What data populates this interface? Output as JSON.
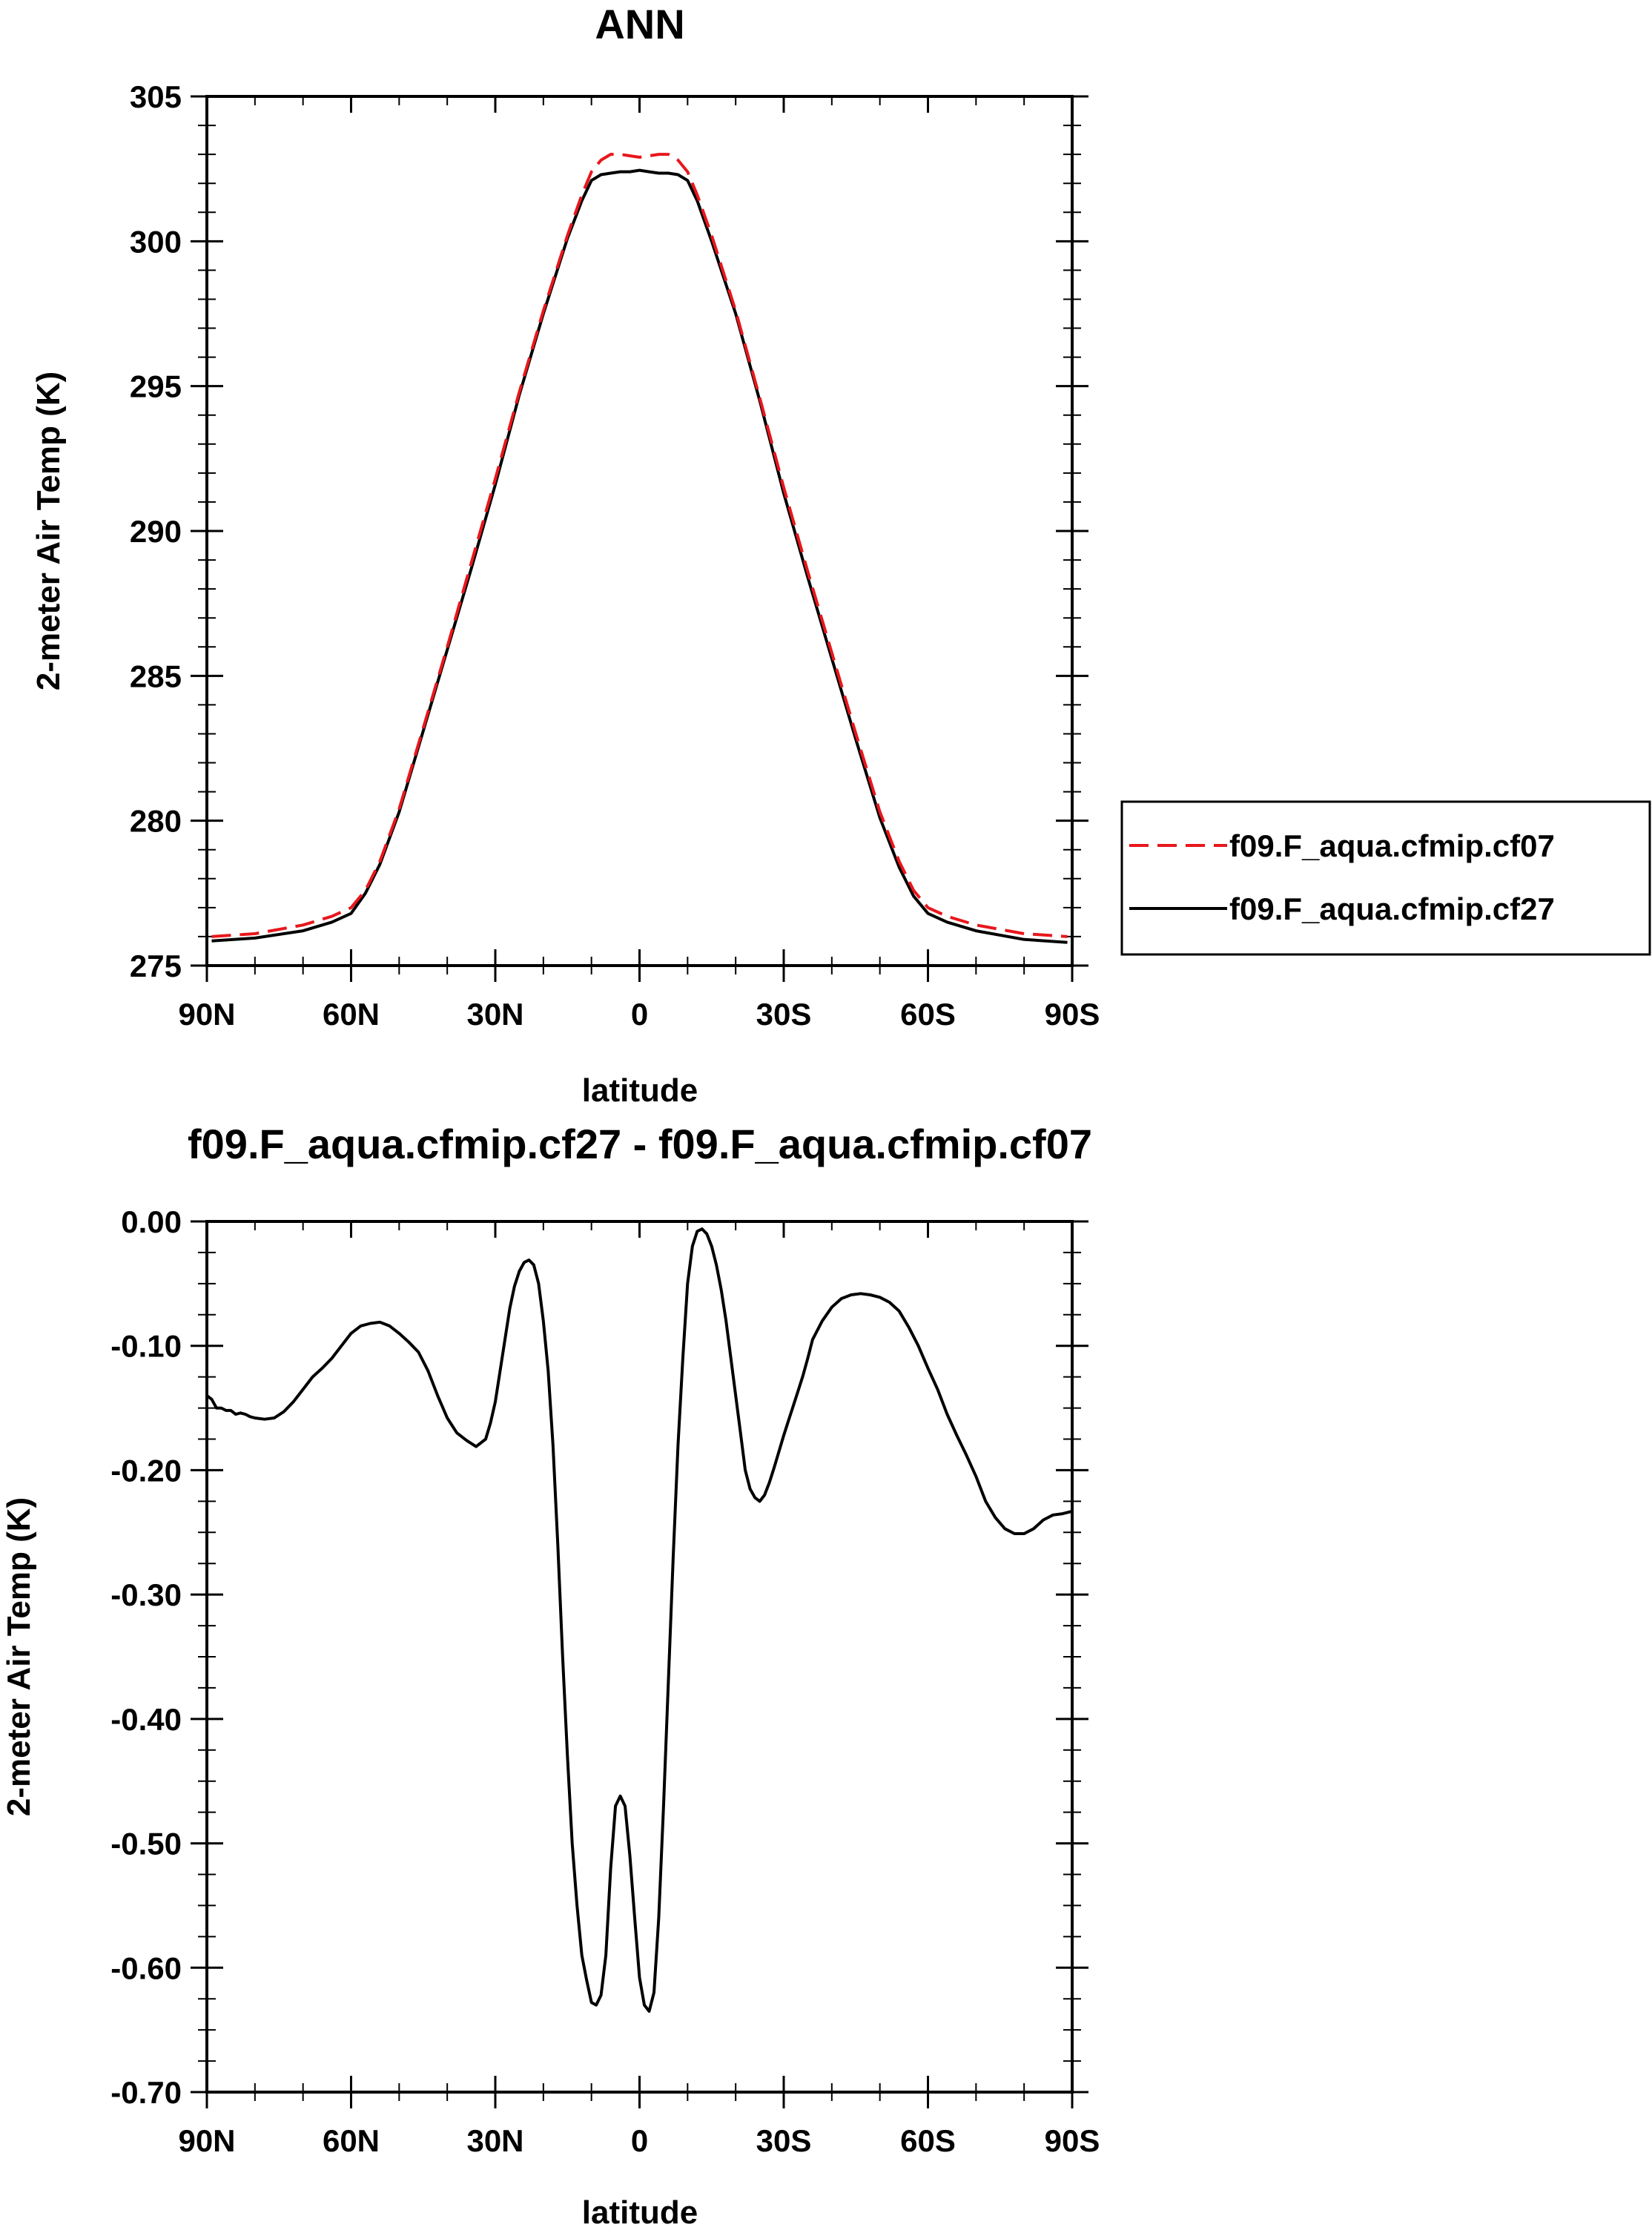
{
  "chart_data": [
    {
      "type": "line",
      "title": "ANN",
      "xlabel": "latitude",
      "ylabel": "2-meter Air Temp (K)",
      "xlim": [
        -90,
        90
      ],
      "ylim": [
        275,
        305
      ],
      "x_ticks": [
        {
          "value": -90,
          "label": "90N"
        },
        {
          "value": -60,
          "label": "60N"
        },
        {
          "value": -30,
          "label": "30N"
        },
        {
          "value": 0,
          "label": "0"
        },
        {
          "value": 30,
          "label": "30S"
        },
        {
          "value": 60,
          "label": "60S"
        },
        {
          "value": 90,
          "label": "90S"
        }
      ],
      "y_ticks": [
        {
          "value": 275,
          "label": "275"
        },
        {
          "value": 280,
          "label": "280"
        },
        {
          "value": 285,
          "label": "285"
        },
        {
          "value": 290,
          "label": "290"
        },
        {
          "value": 295,
          "label": "295"
        },
        {
          "value": 300,
          "label": "300"
        },
        {
          "value": 305,
          "label": "305"
        }
      ],
      "legend": {
        "position": "right"
      },
      "series": [
        {
          "name": "f09.F_aqua.cfmip.cf07",
          "color": "#e8171c",
          "dash": "dashed",
          "x": [
            -89,
            -80,
            -70,
            -64,
            -60,
            -57,
            -54,
            -50,
            -45,
            -40,
            -35,
            -30,
            -25,
            -20,
            -15,
            -12,
            -10,
            -8,
            -6,
            -4,
            -2,
            0,
            2,
            4,
            6,
            8,
            10,
            12,
            15,
            20,
            25,
            30,
            35,
            40,
            45,
            50,
            54,
            57,
            60,
            64,
            70,
            80,
            89
          ],
          "values": [
            276.0,
            276.1,
            276.4,
            276.7,
            277.0,
            277.6,
            278.6,
            280.4,
            283.2,
            286.0,
            288.9,
            291.8,
            294.8,
            297.6,
            300.2,
            301.6,
            302.4,
            302.8,
            303.0,
            303.0,
            302.95,
            302.9,
            302.95,
            303.0,
            303.0,
            302.8,
            302.4,
            301.6,
            300.2,
            297.6,
            294.6,
            291.5,
            288.6,
            285.8,
            283.0,
            280.3,
            278.6,
            277.6,
            277.0,
            276.7,
            276.4,
            276.1,
            276.0
          ]
        },
        {
          "name": "f09.F_aqua.cfmip.cf27",
          "color": "#000000",
          "dash": "solid",
          "x": [
            -89,
            -80,
            -70,
            -64,
            -60,
            -57,
            -54,
            -50,
            -45,
            -40,
            -35,
            -30,
            -25,
            -20,
            -15,
            -12,
            -10,
            -8,
            -6,
            -4,
            -2,
            0,
            2,
            4,
            6,
            8,
            10,
            12,
            15,
            20,
            25,
            30,
            35,
            40,
            45,
            50,
            54,
            57,
            60,
            64,
            70,
            80,
            89
          ],
          "values": [
            275.85,
            275.95,
            276.2,
            276.5,
            276.8,
            277.5,
            278.5,
            280.3,
            283.1,
            285.9,
            288.7,
            291.6,
            294.7,
            297.5,
            300.1,
            301.4,
            302.1,
            302.3,
            302.35,
            302.4,
            302.4,
            302.45,
            302.4,
            302.35,
            302.35,
            302.3,
            302.1,
            301.4,
            300.0,
            297.5,
            294.5,
            291.3,
            288.4,
            285.6,
            282.8,
            280.1,
            278.4,
            277.4,
            276.8,
            276.5,
            276.2,
            275.9,
            275.8
          ]
        }
      ]
    },
    {
      "type": "line",
      "title": "f09.F_aqua.cfmip.cf27 - f09.F_aqua.cfmip.cf07",
      "xlabel": "latitude",
      "ylabel": "2-meter Air Temp (K)",
      "xlim": [
        -90,
        90
      ],
      "ylim": [
        -0.7,
        0.0
      ],
      "x_ticks": [
        {
          "value": -90,
          "label": "90N"
        },
        {
          "value": -60,
          "label": "60N"
        },
        {
          "value": -30,
          "label": "30N"
        },
        {
          "value": 0,
          "label": "0"
        },
        {
          "value": 30,
          "label": "30S"
        },
        {
          "value": 60,
          "label": "60S"
        },
        {
          "value": 90,
          "label": "90S"
        }
      ],
      "y_ticks": [
        {
          "value": 0.0,
          "label": "0.00"
        },
        {
          "value": -0.1,
          "label": "-0.10"
        },
        {
          "value": -0.2,
          "label": "-0.20"
        },
        {
          "value": -0.3,
          "label": "-0.30"
        },
        {
          "value": -0.4,
          "label": "-0.40"
        },
        {
          "value": -0.5,
          "label": "-0.50"
        },
        {
          "value": -0.6,
          "label": "-0.60"
        },
        {
          "value": -0.7,
          "label": "-0.70"
        }
      ],
      "series": [
        {
          "color": "#000000",
          "dash": "solid",
          "x": [
            -90,
            -89,
            -88,
            -87,
            -86,
            -85,
            -84,
            -83,
            -82,
            -81,
            -80,
            -78,
            -76,
            -74,
            -72,
            -70,
            -68,
            -66,
            -64,
            -62,
            -60,
            -58,
            -56,
            -54,
            -52,
            -50,
            -48,
            -46,
            -44,
            -42,
            -40,
            -38,
            -36,
            -34,
            -32,
            -31,
            -30,
            -29,
            -28,
            -27,
            -26,
            -25,
            -24,
            -23,
            -22,
            -21,
            -20,
            -19,
            -18,
            -17,
            -16,
            -15,
            -14,
            -13,
            -12,
            -11,
            -10,
            -9,
            -8,
            -7,
            -6,
            -5,
            -4,
            -3,
            -2,
            -1,
            0,
            1,
            2,
            3,
            4,
            5,
            6,
            7,
            8,
            9,
            10,
            11,
            12,
            13,
            14,
            15,
            16,
            17,
            18,
            19,
            20,
            21,
            22,
            23,
            24,
            25,
            26,
            27,
            28,
            29,
            30,
            31,
            32,
            33,
            34,
            35,
            36,
            38,
            40,
            42,
            44,
            46,
            48,
            50,
            52,
            54,
            56,
            58,
            60,
            62,
            64,
            66,
            68,
            70,
            72,
            74,
            76,
            78,
            80,
            82,
            84,
            86,
            88,
            90
          ],
          "values": [
            -0.14,
            -0.143,
            -0.15,
            -0.15,
            -0.152,
            -0.152,
            -0.155,
            -0.154,
            -0.155,
            -0.157,
            -0.158,
            -0.159,
            -0.158,
            -0.153,
            -0.145,
            -0.135,
            -0.125,
            -0.118,
            -0.11,
            -0.1,
            -0.09,
            -0.084,
            -0.082,
            -0.081,
            -0.084,
            -0.09,
            -0.097,
            -0.105,
            -0.12,
            -0.14,
            -0.158,
            -0.17,
            -0.176,
            -0.181,
            -0.175,
            -0.162,
            -0.145,
            -0.12,
            -0.095,
            -0.07,
            -0.052,
            -0.04,
            -0.033,
            -0.031,
            -0.035,
            -0.05,
            -0.08,
            -0.12,
            -0.18,
            -0.26,
            -0.35,
            -0.43,
            -0.5,
            -0.55,
            -0.59,
            -0.61,
            -0.628,
            -0.63,
            -0.622,
            -0.59,
            -0.52,
            -0.47,
            -0.462,
            -0.47,
            -0.51,
            -0.56,
            -0.608,
            -0.63,
            -0.635,
            -0.62,
            -0.56,
            -0.47,
            -0.37,
            -0.27,
            -0.18,
            -0.11,
            -0.05,
            -0.02,
            -0.008,
            -0.006,
            -0.01,
            -0.02,
            -0.035,
            -0.055,
            -0.08,
            -0.11,
            -0.14,
            -0.17,
            -0.2,
            -0.215,
            -0.222,
            -0.225,
            -0.22,
            -0.21,
            -0.198,
            -0.185,
            -0.172,
            -0.16,
            -0.148,
            -0.136,
            -0.124,
            -0.11,
            -0.095,
            -0.08,
            -0.069,
            -0.062,
            -0.059,
            -0.058,
            -0.059,
            -0.061,
            -0.065,
            -0.072,
            -0.085,
            -0.1,
            -0.118,
            -0.135,
            -0.155,
            -0.172,
            -0.188,
            -0.205,
            -0.225,
            -0.238,
            -0.247,
            -0.251,
            -0.251,
            -0.247,
            -0.24,
            -0.236,
            -0.235,
            -0.233
          ]
        }
      ]
    }
  ]
}
